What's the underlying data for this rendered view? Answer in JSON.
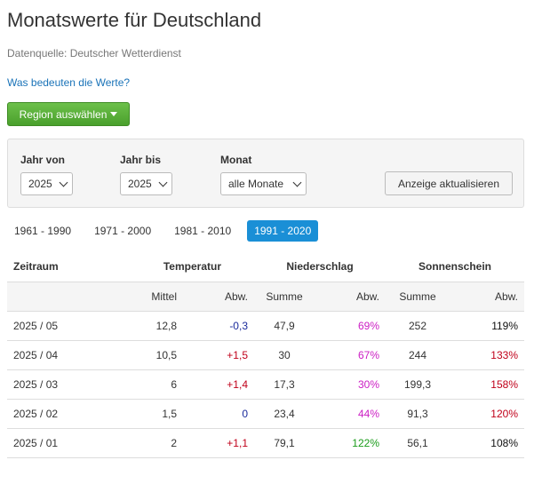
{
  "header": {
    "title": "Monatswerte für Deutschland",
    "source": "Datenquelle: Deutscher Wetterdienst",
    "help_link": "Was bedeuten die Werte?",
    "region_button": "Region auswählen"
  },
  "filters": {
    "year_from_label": "Jahr von",
    "year_from_value": "2025",
    "year_to_label": "Jahr bis",
    "year_to_value": "2025",
    "month_label": "Monat",
    "month_value": "alle Monate",
    "update_button": "Anzeige aktualisieren"
  },
  "periods": [
    "1961 - 1990",
    "1971 - 2000",
    "1981 - 2010",
    "1991 - 2020"
  ],
  "active_period": "1991 - 2020",
  "table": {
    "group_headers": {
      "period": "Zeitraum",
      "temperature": "Temperatur",
      "precipitation": "Niederschlag",
      "sunshine": "Sonnenschein"
    },
    "sub_headers": {
      "temp_mean": "Mittel",
      "temp_dev": "Abw.",
      "precip_sum": "Summe",
      "precip_dev": "Abw.",
      "sun_sum": "Summe",
      "sun_dev": "Abw."
    },
    "rows": [
      {
        "period": "2025 / 05",
        "temp_mean": "12,8",
        "temp_dev": "-0,3",
        "precip_sum": "47,9",
        "precip_dev": "69%",
        "sun_sum": "252",
        "sun_dev": "119%"
      },
      {
        "period": "2025 / 04",
        "temp_mean": "10,5",
        "temp_dev": "+1,5",
        "precip_sum": "30",
        "precip_dev": "67%",
        "sun_sum": "244",
        "sun_dev": "133%"
      },
      {
        "period": "2025 / 03",
        "temp_mean": "6",
        "temp_dev": "+1,4",
        "precip_sum": "17,3",
        "precip_dev": "30%",
        "sun_sum": "199,3",
        "sun_dev": "158%"
      },
      {
        "period": "2025 / 02",
        "temp_mean": "1,5",
        "temp_dev": "0",
        "precip_sum": "23,4",
        "precip_dev": "44%",
        "sun_sum": "91,3",
        "sun_dev": "120%"
      },
      {
        "period": "2025 / 01",
        "temp_mean": "2",
        "temp_dev": "+1,1",
        "precip_sum": "79,1",
        "precip_dev": "122%",
        "sun_sum": "56,1",
        "sun_dev": "108%"
      }
    ]
  },
  "colors": {
    "accent_green": "#4aa02c",
    "accent_blue": "#1a8fd6",
    "link": "#1a73b8",
    "negative_dev": "#1a2a9c",
    "positive_dev": "#c0001a",
    "dry_precip": "#cc1fc4",
    "wet_precip": "#1a9c1a"
  },
  "icons": {
    "region_caret": "caret-down-icon",
    "select_chevron": "chevron-down-icon"
  }
}
